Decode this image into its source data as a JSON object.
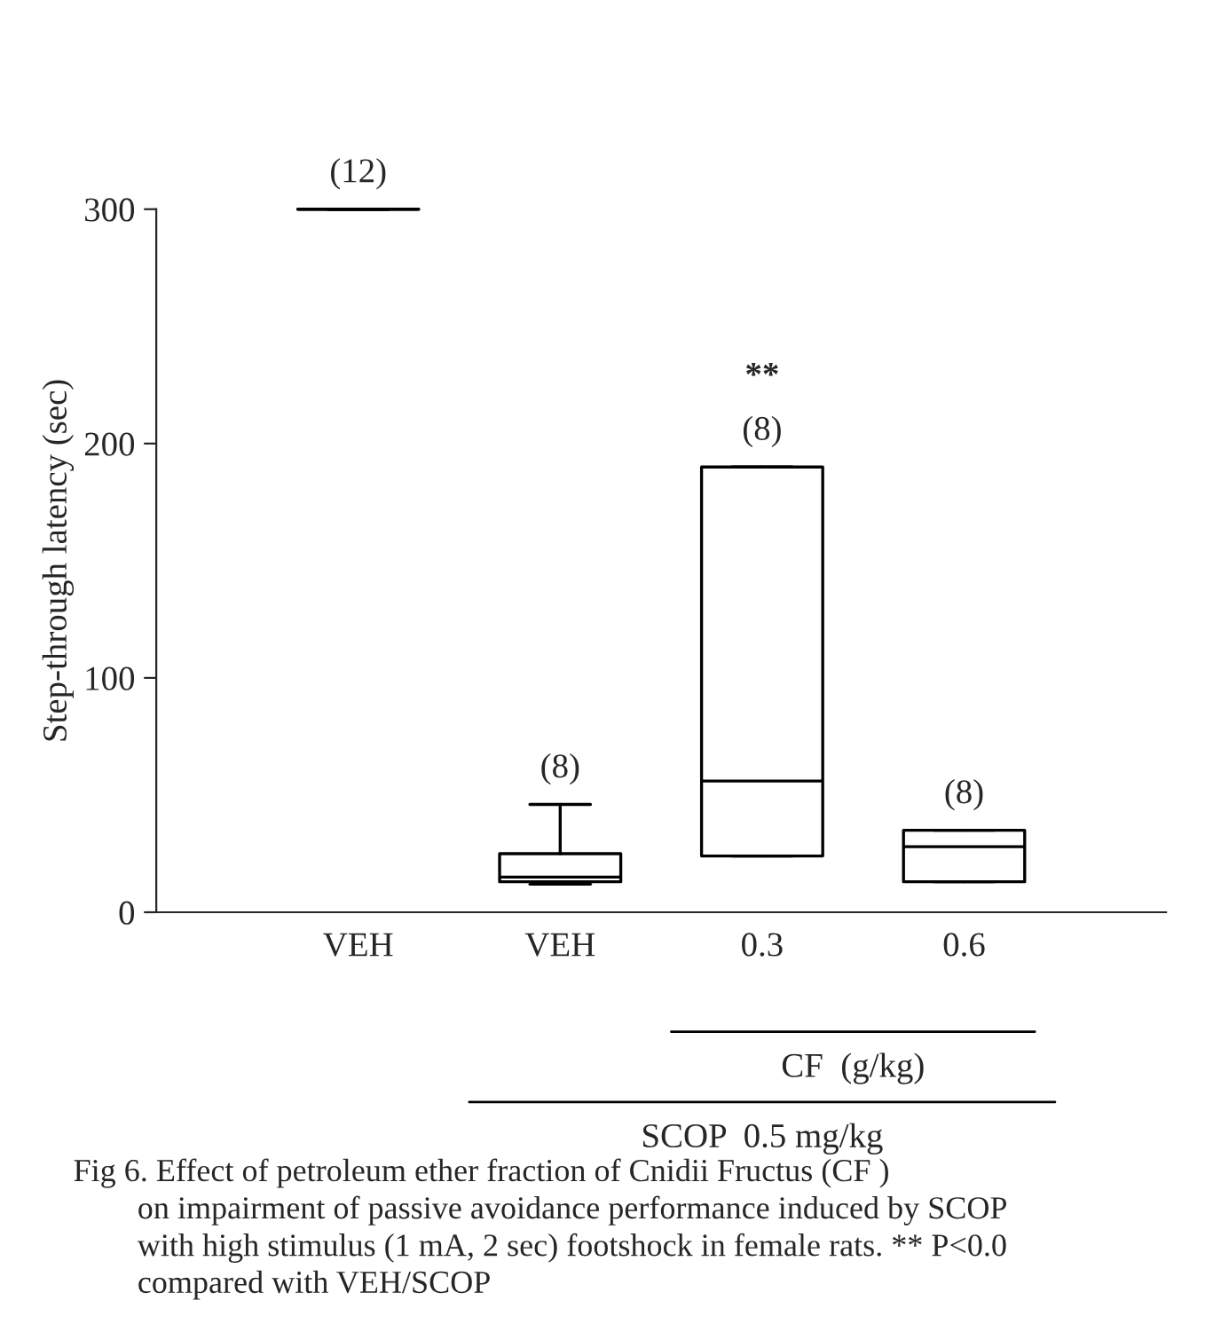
{
  "chart_data": {
    "type": "box",
    "categories": [
      "VEH",
      "VEH",
      "0.3",
      "0.6"
    ],
    "ylabel": "Step-through latency (sec)",
    "ylim": [
      0,
      300
    ],
    "yticks": [
      0,
      100,
      200,
      300
    ],
    "grid": false,
    "legend": false,
    "boxes": [
      {
        "low": 300,
        "q1": 300,
        "median": 300,
        "q3": 300,
        "high": 300
      },
      {
        "low": 12,
        "q1": 13,
        "median": 15,
        "q3": 25,
        "high": 46
      },
      {
        "low": 24,
        "q1": 24,
        "median": 56,
        "q3": 190,
        "high": 190
      },
      {
        "low": 13,
        "q1": 13,
        "median": 28,
        "q3": 35,
        "high": 35
      }
    ],
    "value_labels": [
      "(12)",
      "(8)",
      "(8)",
      "(8)"
    ],
    "annotations": [
      {
        "text": "**",
        "x": "0.3",
        "y": 190
      },
      "CF  (g/kg)",
      "SCOP  0.5 mg/kg",
      "Fig 6. Effect of petroleum ether fraction of Cnidii Fructus (CF )\n        on impairment of passive avoidance performance induced by SCOP\n        with high stimulus (1 mA, 2 sec) footshock in female rats. ** P<0.0\n        compared with VEH/SCOP"
    ]
  }
}
